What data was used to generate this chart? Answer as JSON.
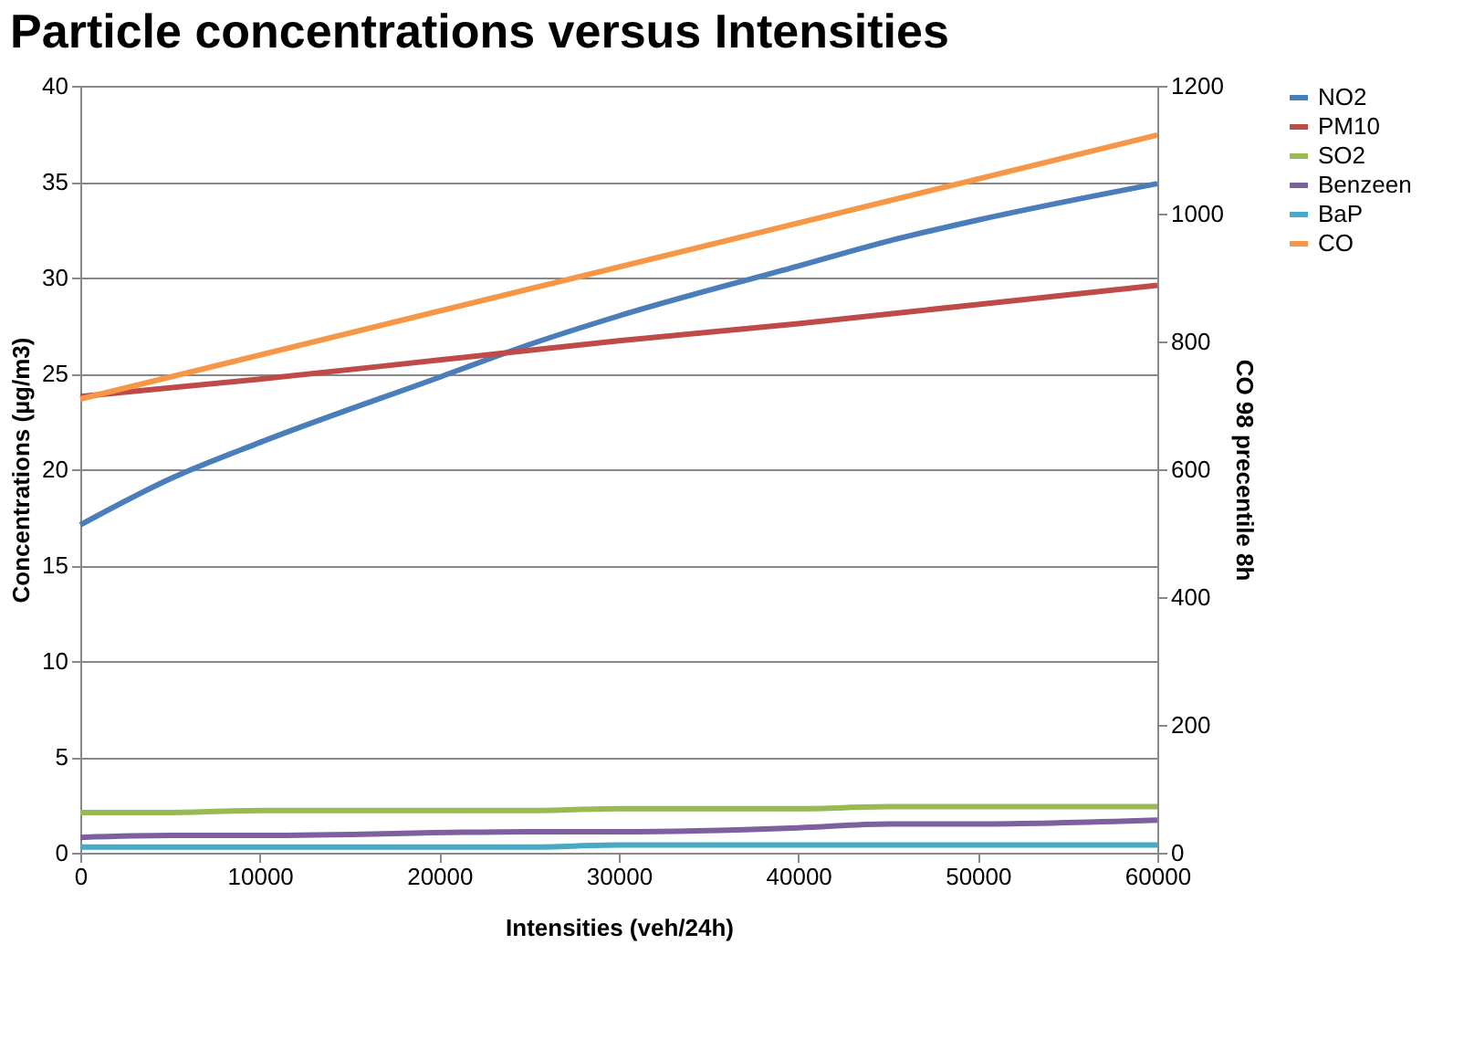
{
  "chart_data": {
    "type": "line",
    "title": "Particle concentrations versus  Intensities",
    "xlabel": "Intensities (veh/24h)",
    "ylabel": "Concentrations (µg/m3)",
    "y2label": "CO  98 precentile 8h",
    "x": [
      0,
      10000,
      20000,
      30000,
      40000,
      50000,
      60000
    ],
    "series": [
      {
        "name": "NO2",
        "color": "#4a7ebb",
        "x": [
          0,
          5000,
          10000,
          20000,
          25000,
          30000,
          40000,
          45000,
          50000,
          60000
        ],
        "values": [
          17.1,
          19.5,
          21.4,
          24.8,
          26.5,
          28.0,
          30.6,
          31.9,
          33.0,
          34.9
        ]
      },
      {
        "name": "PM10",
        "color": "#be4b48",
        "values": [
          23.8,
          24.7,
          25.7,
          26.7,
          27.6,
          28.6,
          29.6
        ]
      },
      {
        "name": "SO2",
        "color": "#98b954",
        "x": [
          0,
          5000,
          10000,
          25000,
          30000,
          40000,
          45000,
          60000
        ],
        "values": [
          2.1,
          2.1,
          2.2,
          2.2,
          2.3,
          2.3,
          2.4,
          2.4
        ]
      },
      {
        "name": "Benzeen",
        "color": "#7d60a0",
        "x": [
          0,
          5000,
          10000,
          25000,
          30000,
          40000,
          45000,
          50000,
          60000
        ],
        "values": [
          0.8,
          0.9,
          0.9,
          1.1,
          1.1,
          1.3,
          1.5,
          1.5,
          1.7
        ]
      },
      {
        "name": "BaP",
        "color": "#46aac5",
        "x": [
          0,
          25000,
          30000,
          60000
        ],
        "values": [
          0.3,
          0.3,
          0.4,
          0.4
        ]
      },
      {
        "name": "CO",
        "color": "#f79646",
        "axis": "y2",
        "x": [
          0,
          60000
        ],
        "values": [
          710,
          1123
        ]
      }
    ],
    "xlim": [
      0,
      60000
    ],
    "xticks": [
      0,
      10000,
      20000,
      30000,
      40000,
      50000,
      60000
    ],
    "ylim": [
      0,
      40
    ],
    "yticks": [
      0,
      5,
      10,
      15,
      20,
      25,
      30,
      35,
      40
    ],
    "y2lim": [
      0,
      1200
    ],
    "y2ticks": [
      0,
      200,
      400,
      600,
      800,
      1000,
      1200
    ],
    "grid": "y",
    "legend": "right",
    "line_style": "solid",
    "marker": "none"
  }
}
